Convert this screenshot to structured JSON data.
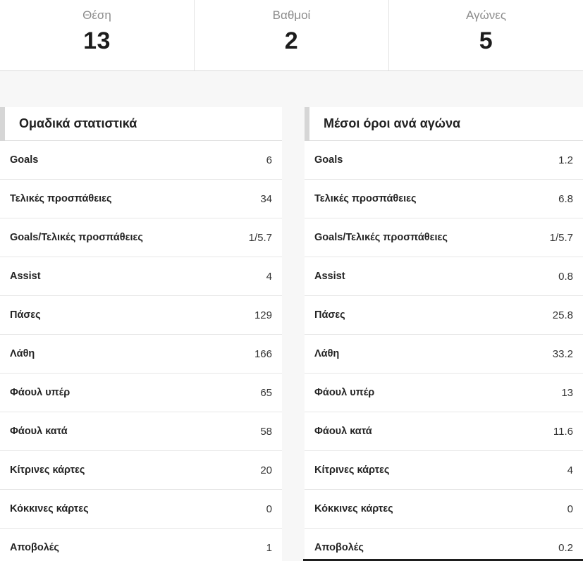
{
  "top_stats": [
    {
      "label": "Θέση",
      "value": "13"
    },
    {
      "label": "Βαθμοί",
      "value": "2"
    },
    {
      "label": "Αγώνες",
      "value": "5"
    }
  ],
  "tables": [
    {
      "title": "Ομαδικά στατιστικά",
      "rows": [
        {
          "label": "Goals",
          "value": "6"
        },
        {
          "label": "Τελικές προσπάθειες",
          "value": "34"
        },
        {
          "label": "Goals/Τελικές προσπάθειες",
          "value": "1/5.7"
        },
        {
          "label": "Assist",
          "value": "4"
        },
        {
          "label": "Πάσες",
          "value": "129"
        },
        {
          "label": "Λάθη",
          "value": "166"
        },
        {
          "label": "Φάουλ υπέρ",
          "value": "65"
        },
        {
          "label": "Φάουλ κατά",
          "value": "58"
        },
        {
          "label": "Κίτρινες κάρτες",
          "value": "20"
        },
        {
          "label": "Κόκκινες κάρτες",
          "value": "0"
        },
        {
          "label": "Αποβολές",
          "value": "1"
        }
      ]
    },
    {
      "title": "Μέσοι όροι ανά αγώνα",
      "rows": [
        {
          "label": "Goals",
          "value": "1.2"
        },
        {
          "label": "Τελικές προσπάθειες",
          "value": "6.8"
        },
        {
          "label": "Goals/Τελικές προσπάθειες",
          "value": "1/5.7"
        },
        {
          "label": "Assist",
          "value": "0.8"
        },
        {
          "label": "Πάσες",
          "value": "25.8"
        },
        {
          "label": "Λάθη",
          "value": "33.2"
        },
        {
          "label": "Φάουλ υπέρ",
          "value": "13"
        },
        {
          "label": "Φάουλ κατά",
          "value": "11.6"
        },
        {
          "label": "Κίτρινες κάρτες",
          "value": "4"
        },
        {
          "label": "Κόκκινες κάρτες",
          "value": "0"
        },
        {
          "label": "Αποβολές",
          "value": "0.2"
        }
      ]
    }
  ],
  "colors": {
    "page_background": "#f7f7f7",
    "card_background": "#ffffff",
    "accent_bar": "#d6d6d6",
    "row_separator": "#e7e7e7",
    "label_gray": "#8c8c8c",
    "text_dark": "#1c1c1c",
    "bottom_strip": "#1e1e1e"
  }
}
